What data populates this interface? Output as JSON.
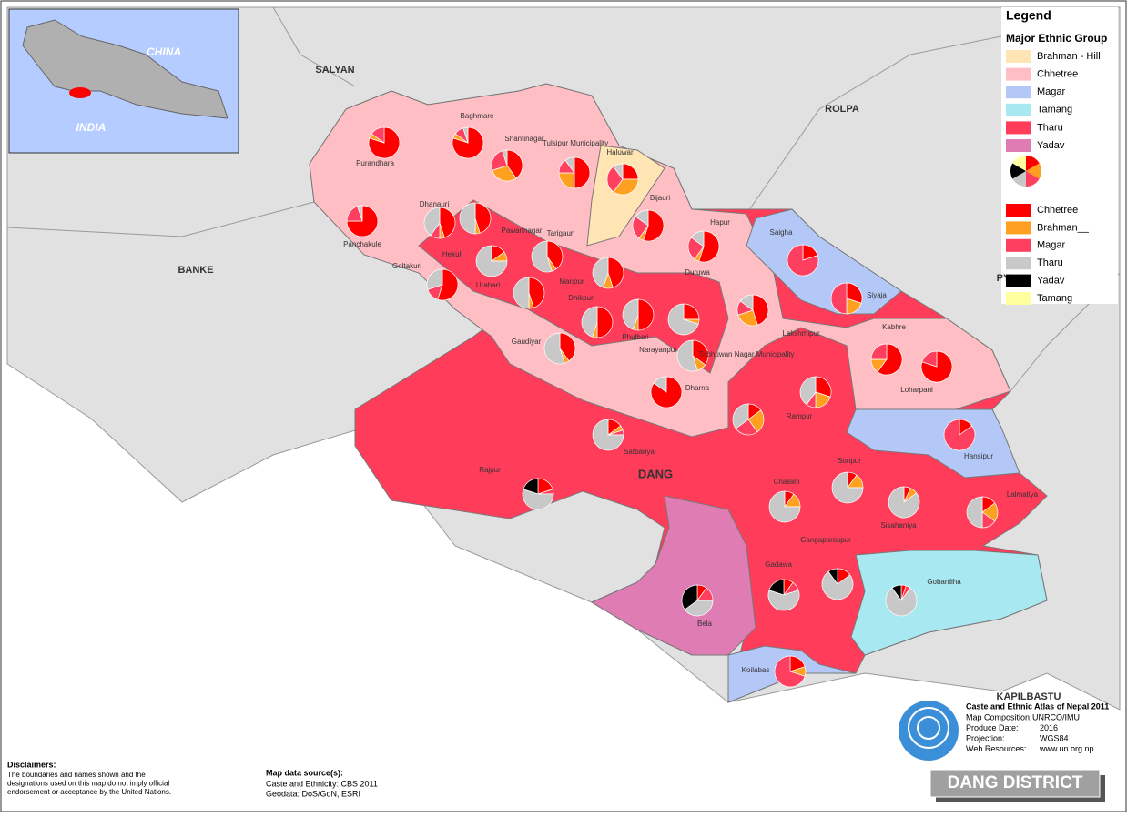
{
  "map": {
    "districts": {
      "dang": "DANG",
      "salyan": "SALYAN",
      "rolpa": "ROLPA",
      "banke": "BANKE",
      "kapilbastu": "KAPILBASTU",
      "pyuthan": "PY"
    },
    "inset": {
      "china": "CHINA",
      "india": "INDIA"
    },
    "legend": {
      "title": "Legend",
      "subtitle": "Major Ethnic Group",
      "areas": [
        {
          "label": "Brahman - Hill",
          "color": "#ffe4b4"
        },
        {
          "label": "Chhetree",
          "color": "#ffbec4"
        },
        {
          "label": "Magar",
          "color": "#b4c8f8"
        },
        {
          "label": "Tamang",
          "color": "#a8e8f0"
        },
        {
          "label": "Tharu",
          "color": "#ff3c5a"
        },
        {
          "label": "Yadav",
          "color": "#e07cb4"
        }
      ],
      "pie_groups": [
        {
          "label": "Chhetree",
          "color": "#ff0000"
        },
        {
          "label": "Brahman__",
          "color": "#ffa020"
        },
        {
          "label": "Magar",
          "color": "#ff3f5f"
        },
        {
          "label": "Tharu",
          "color": "#c8c8c8"
        },
        {
          "label": "Yadav",
          "color": "#000000"
        },
        {
          "label": "Tamang",
          "color": "#ffffa0"
        }
      ]
    },
    "pies": [
      {
        "label": "Purandhara",
        "values": [
          80,
          5,
          15,
          0,
          0,
          0
        ]
      },
      {
        "label": "Baghmare",
        "values": [
          80,
          5,
          10,
          5,
          0,
          0
        ]
      },
      {
        "label": "Shantinagar",
        "values": [
          40,
          30,
          25,
          5,
          0,
          0
        ]
      },
      {
        "label": "Tulsipur Municipality",
        "values": [
          50,
          25,
          15,
          10,
          0,
          0
        ]
      },
      {
        "label": "Haluwar",
        "values": [
          25,
          35,
          30,
          10,
          0,
          0
        ]
      },
      {
        "label": "Bijauri",
        "values": [
          55,
          5,
          25,
          15,
          0,
          0
        ]
      },
      {
        "label": "Hapur",
        "values": [
          55,
          5,
          25,
          15,
          0,
          0
        ]
      },
      {
        "label": "Saigha",
        "values": [
          20,
          0,
          80,
          0,
          0,
          0
        ]
      },
      {
        "label": "Siyaja",
        "values": [
          30,
          20,
          50,
          0,
          0,
          0
        ]
      },
      {
        "label": "Kabhre",
        "values": [
          60,
          15,
          25,
          0,
          0,
          0
        ]
      },
      {
        "label": "Loharpani",
        "values": [
          80,
          0,
          20,
          0,
          0,
          0
        ]
      },
      {
        "label": "Dhanauri",
        "values": [
          45,
          5,
          10,
          40,
          0,
          0
        ]
      },
      {
        "label": "Pawannagar",
        "values": [
          45,
          5,
          0,
          50,
          0,
          0
        ]
      },
      {
        "label": "Tarigaun",
        "values": [
          40,
          5,
          0,
          55,
          0,
          0
        ]
      },
      {
        "label": "Panchakule",
        "values": [
          75,
          0,
          20,
          5,
          0,
          0
        ]
      },
      {
        "label": "Hekuli",
        "values": [
          15,
          10,
          0,
          75,
          0,
          0
        ]
      },
      {
        "label": "Goltakuri",
        "values": [
          55,
          0,
          15,
          30,
          0,
          0
        ]
      },
      {
        "label": "Urahari",
        "values": [
          45,
          5,
          0,
          50,
          0,
          0
        ]
      },
      {
        "label": "Manpur",
        "values": [
          45,
          10,
          0,
          45,
          0,
          0
        ]
      },
      {
        "label": "Duruwa",
        "values": [
          25,
          5,
          0,
          70,
          0,
          0
        ]
      },
      {
        "label": "Dhikpur",
        "values": [
          50,
          5,
          0,
          45,
          0,
          0
        ]
      },
      {
        "label": "Phulbari",
        "values": [
          50,
          5,
          0,
          45,
          0,
          0
        ]
      },
      {
        "label": "Gaudiyar",
        "values": [
          40,
          5,
          0,
          55,
          0,
          0
        ]
      },
      {
        "label": "Narayanpur",
        "values": [
          35,
          10,
          0,
          55,
          0,
          0
        ]
      },
      {
        "label": "Tribhuwan Nagar Municipality",
        "values": [
          45,
          25,
          15,
          15,
          0,
          0
        ]
      },
      {
        "label": "Lakshmipur",
        "values": [
          15,
          25,
          25,
          35,
          0,
          0
        ]
      },
      {
        "label": "Dharna",
        "values": [
          85,
          0,
          0,
          15,
          0,
          0
        ]
      },
      {
        "label": "Rampur",
        "values": [
          30,
          20,
          10,
          40,
          0,
          0
        ]
      },
      {
        "label": "Satbariya",
        "values": [
          15,
          5,
          5,
          75,
          0,
          0
        ]
      },
      {
        "label": "Hansipur",
        "values": [
          15,
          0,
          85,
          0,
          0,
          0
        ]
      },
      {
        "label": "Rajpur",
        "values": [
          20,
          0,
          5,
          55,
          20,
          0
        ]
      },
      {
        "label": "Sonpur",
        "values": [
          10,
          15,
          0,
          75,
          0,
          0
        ]
      },
      {
        "label": "Chailahi",
        "values": [
          10,
          15,
          0,
          75,
          0,
          0
        ]
      },
      {
        "label": "Sisahaniya",
        "values": [
          7,
          8,
          0,
          85,
          0,
          0
        ]
      },
      {
        "label": "Lalmatiya",
        "values": [
          15,
          20,
          15,
          50,
          0,
          0
        ]
      },
      {
        "label": "Gangaparaspur",
        "values": [
          15,
          0,
          0,
          75,
          10,
          0
        ]
      },
      {
        "label": "Gadawa",
        "values": [
          10,
          0,
          10,
          60,
          20,
          0
        ]
      },
      {
        "label": "Gobardiha",
        "values": [
          5,
          0,
          5,
          80,
          10,
          0
        ]
      },
      {
        "label": "Bela",
        "values": [
          10,
          0,
          15,
          40,
          35,
          0
        ]
      },
      {
        "label": "Koilabas",
        "values": [
          20,
          10,
          70,
          0,
          0,
          0
        ]
      }
    ],
    "info": {
      "title": "Caste and Ethnic Atlas of Nepal 2011",
      "rows": [
        [
          "Map Composition:",
          "UNRCO/IMU"
        ],
        [
          "Produce Date:",
          "2016"
        ],
        [
          "Projection:",
          "WGS84"
        ],
        [
          "Web Resources:",
          "www.un.org.np"
        ]
      ]
    },
    "disclaimer": {
      "heading": "Disclaimers:",
      "lines": [
        "The boundaries and names shown and the",
        "designations used on this map do not imply official",
        "endorsement or acceptance by the United Nations."
      ]
    },
    "sources": {
      "heading": "Map data source(s):",
      "lines": [
        "Caste and Ethnicity: CBS 2011",
        "Geodata: DoS/GoN, ESRI"
      ]
    },
    "banner": "DANG DISTRICT"
  }
}
